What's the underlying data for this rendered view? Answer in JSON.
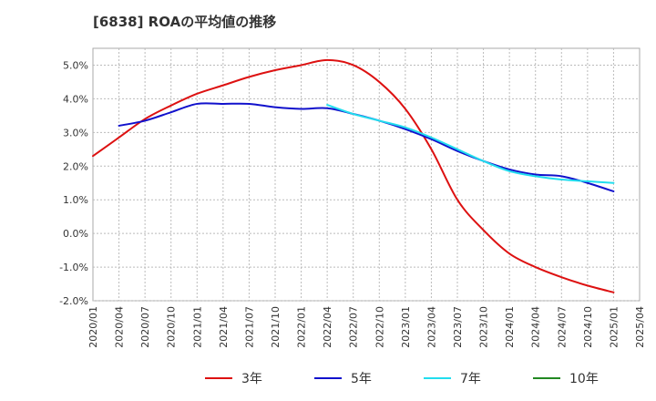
{
  "chart_data": {
    "type": "line",
    "title": "[6838]  ROAの平均値の推移",
    "xlabel": "",
    "ylabel": "",
    "x_ticks": [
      "2020/01",
      "2020/04",
      "2020/07",
      "2020/10",
      "2021/01",
      "2021/04",
      "2021/07",
      "2021/10",
      "2022/01",
      "2022/04",
      "2022/07",
      "2022/10",
      "2023/01",
      "2023/04",
      "2023/07",
      "2023/10",
      "2024/01",
      "2024/04",
      "2024/07",
      "2024/10",
      "2025/01",
      "2025/04"
    ],
    "y_ticks": [
      "5.0%",
      "4.0%",
      "3.0%",
      "2.0%",
      "1.0%",
      "0.0%",
      "-1.0%",
      "-2.0%"
    ],
    "ylim": [
      -2.0,
      5.5
    ],
    "y_unit": "%",
    "grid": true,
    "legend_position": "bottom",
    "series": [
      {
        "name": "3年",
        "color": "#dd1111",
        "points": [
          [
            "2020/01",
            2.3
          ],
          [
            "2020/04",
            2.85
          ],
          [
            "2020/07",
            3.4
          ],
          [
            "2020/10",
            3.8
          ],
          [
            "2021/01",
            4.15
          ],
          [
            "2021/04",
            4.4
          ],
          [
            "2021/07",
            4.65
          ],
          [
            "2021/10",
            4.85
          ],
          [
            "2022/01",
            5.0
          ],
          [
            "2022/04",
            5.15
          ],
          [
            "2022/07",
            5.0
          ],
          [
            "2022/10",
            4.5
          ],
          [
            "2023/01",
            3.7
          ],
          [
            "2023/04",
            2.5
          ],
          [
            "2023/07",
            1.0
          ],
          [
            "2023/10",
            0.1
          ],
          [
            "2024/01",
            -0.6
          ],
          [
            "2024/04",
            -1.0
          ],
          [
            "2024/07",
            -1.3
          ],
          [
            "2024/10",
            -1.55
          ],
          [
            "2025/01",
            -1.75
          ]
        ]
      },
      {
        "name": "5年",
        "color": "#1111cc",
        "points": [
          [
            "2020/04",
            3.2
          ],
          [
            "2020/07",
            3.35
          ],
          [
            "2020/10",
            3.6
          ],
          [
            "2021/01",
            3.85
          ],
          [
            "2021/04",
            3.85
          ],
          [
            "2021/07",
            3.85
          ],
          [
            "2021/10",
            3.75
          ],
          [
            "2022/01",
            3.7
          ],
          [
            "2022/04",
            3.72
          ],
          [
            "2022/07",
            3.55
          ],
          [
            "2022/10",
            3.35
          ],
          [
            "2023/01",
            3.1
          ],
          [
            "2023/04",
            2.8
          ],
          [
            "2023/07",
            2.45
          ],
          [
            "2023/10",
            2.15
          ],
          [
            "2024/01",
            1.9
          ],
          [
            "2024/04",
            1.75
          ],
          [
            "2024/07",
            1.7
          ],
          [
            "2024/10",
            1.5
          ],
          [
            "2025/01",
            1.25
          ]
        ]
      },
      {
        "name": "7年",
        "color": "#22ddee",
        "points": [
          [
            "2022/04",
            3.82
          ],
          [
            "2022/07",
            3.55
          ],
          [
            "2022/10",
            3.35
          ],
          [
            "2023/01",
            3.15
          ],
          [
            "2023/04",
            2.85
          ],
          [
            "2023/07",
            2.5
          ],
          [
            "2023/10",
            2.15
          ],
          [
            "2024/01",
            1.85
          ],
          [
            "2024/04",
            1.7
          ],
          [
            "2024/07",
            1.6
          ],
          [
            "2024/10",
            1.55
          ],
          [
            "2025/01",
            1.5
          ]
        ]
      },
      {
        "name": "10年",
        "color": "#228822",
        "points": []
      }
    ]
  }
}
